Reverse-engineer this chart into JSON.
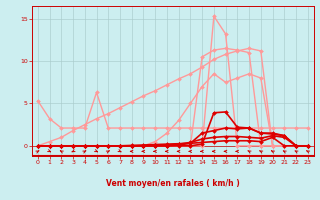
{
  "x": [
    0,
    1,
    2,
    3,
    4,
    5,
    6,
    7,
    8,
    9,
    10,
    11,
    12,
    13,
    14,
    15,
    16,
    17,
    18,
    19,
    20,
    21,
    22,
    23
  ],
  "series": [
    {
      "name": "light_upper_peak",
      "y": [
        0.0,
        0.0,
        0.0,
        0.0,
        0.0,
        0.0,
        0.0,
        0.0,
        0.0,
        0.0,
        0.0,
        0.0,
        0.0,
        0.0,
        0.0,
        15.3,
        13.2,
        0.0,
        0.0,
        0.0,
        0.0,
        0.0,
        0.0,
        0.0
      ],
      "color": "#ff9999",
      "linewidth": 1.0,
      "marker": "D",
      "markersize": 2.0
    },
    {
      "name": "light_slant_top",
      "y": [
        0.0,
        0.0,
        0.0,
        0.0,
        0.0,
        0.0,
        0.0,
        0.0,
        0.0,
        0.0,
        0.0,
        0.0,
        0.0,
        0.0,
        10.5,
        11.3,
        11.5,
        11.3,
        11.0,
        0.0,
        0.0,
        0.0,
        0.0,
        0.0
      ],
      "color": "#ff9999",
      "linewidth": 1.0,
      "marker": "D",
      "markersize": 2.0
    },
    {
      "name": "light_ramp",
      "y": [
        0.0,
        0.5,
        1.0,
        1.8,
        2.5,
        3.2,
        3.8,
        4.5,
        5.2,
        5.9,
        6.5,
        7.2,
        7.9,
        8.5,
        9.3,
        10.2,
        10.8,
        11.2,
        11.5,
        11.2,
        0.0,
        0.0,
        0.0,
        0.0
      ],
      "color": "#ff9999",
      "linewidth": 1.0,
      "marker": "D",
      "markersize": 2.0
    },
    {
      "name": "light_mid_ramp",
      "y": [
        0.0,
        0.0,
        0.0,
        0.0,
        0.0,
        0.0,
        0.0,
        0.0,
        0.0,
        0.0,
        0.5,
        1.5,
        3.0,
        5.0,
        7.0,
        8.5,
        7.5,
        8.0,
        8.5,
        8.0,
        0.0,
        0.0,
        0.0,
        0.0
      ],
      "color": "#ff9999",
      "linewidth": 1.0,
      "marker": "D",
      "markersize": 2.0
    },
    {
      "name": "light_step1",
      "y": [
        5.3,
        3.2,
        2.1,
        2.1,
        2.1,
        6.3,
        2.1,
        2.1,
        2.1,
        2.1,
        2.1,
        2.1,
        2.1,
        2.1,
        2.1,
        2.1,
        2.1,
        2.1,
        2.1,
        2.1,
        2.1,
        2.1,
        2.1,
        2.1
      ],
      "color": "#ff9999",
      "linewidth": 1.0,
      "marker": "D",
      "markersize": 2.0
    },
    {
      "name": "dark_peak",
      "y": [
        0.0,
        0.0,
        0.0,
        0.0,
        0.0,
        0.0,
        0.0,
        0.0,
        0.0,
        0.0,
        0.0,
        0.0,
        0.0,
        0.0,
        0.2,
        3.9,
        4.0,
        2.2,
        2.1,
        1.5,
        1.4,
        1.2,
        0.0,
        0.0
      ],
      "color": "#dd0000",
      "linewidth": 1.2,
      "marker": "D",
      "markersize": 2.0
    },
    {
      "name": "dark_mid",
      "y": [
        0.0,
        0.0,
        0.0,
        0.0,
        0.0,
        0.0,
        0.0,
        0.0,
        0.0,
        0.0,
        0.0,
        0.0,
        0.1,
        0.3,
        1.5,
        1.8,
        2.1,
        2.0,
        2.1,
        1.5,
        1.5,
        1.2,
        0.0,
        0.0
      ],
      "color": "#dd0000",
      "linewidth": 1.2,
      "marker": "D",
      "markersize": 2.0
    },
    {
      "name": "dark_low",
      "y": [
        0.0,
        0.0,
        0.0,
        0.0,
        0.0,
        0.0,
        0.0,
        0.0,
        0.0,
        0.0,
        0.05,
        0.1,
        0.2,
        0.4,
        0.8,
        1.0,
        1.1,
        1.1,
        1.0,
        0.9,
        1.2,
        1.0,
        0.0,
        0.0
      ],
      "color": "#dd0000",
      "linewidth": 1.2,
      "marker": "D",
      "markersize": 2.0
    },
    {
      "name": "dark_base",
      "y": [
        0.0,
        0.0,
        0.0,
        0.0,
        0.0,
        0.0,
        0.0,
        0.0,
        0.05,
        0.1,
        0.15,
        0.2,
        0.25,
        0.3,
        0.4,
        0.5,
        0.6,
        0.6,
        0.6,
        0.5,
        1.0,
        0.0,
        0.0,
        0.0
      ],
      "color": "#dd0000",
      "linewidth": 1.2,
      "marker": "D",
      "markersize": 2.0
    }
  ],
  "arrow_angles": [
    45,
    -45,
    135,
    -135,
    45,
    -45,
    45,
    -45,
    180,
    180,
    180,
    180,
    180,
    180,
    180,
    180,
    180,
    180,
    135,
    135,
    135,
    135,
    135,
    135
  ],
  "xlim": [
    -0.5,
    23.5
  ],
  "ylim": [
    -1.2,
    16.5
  ],
  "yticks": [
    0,
    5,
    10,
    15
  ],
  "xticks": [
    0,
    1,
    2,
    3,
    4,
    5,
    6,
    7,
    8,
    9,
    10,
    11,
    12,
    13,
    14,
    15,
    16,
    17,
    18,
    19,
    20,
    21,
    22,
    23
  ],
  "xlabel": "Vent moyen/en rafales ( km/h )",
  "background_color": "#cceef0",
  "grid_color": "#aacccc",
  "tick_color": "#cc0000",
  "label_color": "#cc0000",
  "arrow_color": "#cc0000",
  "spine_color": "#cc0000"
}
